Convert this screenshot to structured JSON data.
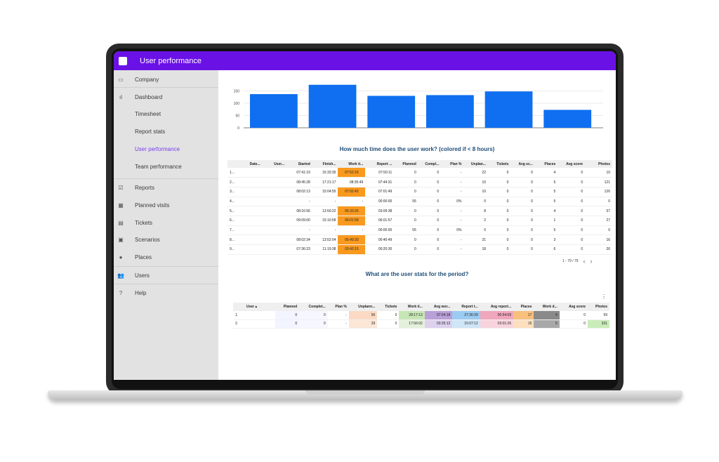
{
  "app": {
    "title": "User performance"
  },
  "sidebar": {
    "items": [
      {
        "label": "Company",
        "icon": "card-icon"
      },
      {
        "label": "Dashboard",
        "icon": "bar-chart-icon"
      },
      {
        "label": "Timesheet",
        "icon": ""
      },
      {
        "label": "Report stats",
        "icon": ""
      },
      {
        "label": "User performance",
        "icon": "",
        "active": true
      },
      {
        "label": "Team performance",
        "icon": ""
      },
      {
        "label": "Reports",
        "icon": "check-box-icon"
      },
      {
        "label": "Planned visits",
        "icon": "grid-icon"
      },
      {
        "label": "Tickets",
        "icon": "ticket-icon"
      },
      {
        "label": "Scenarios",
        "icon": "doc-icon"
      },
      {
        "label": "Places",
        "icon": "pin-icon"
      },
      {
        "label": "Users",
        "icon": "users-icon"
      },
      {
        "label": "Help",
        "icon": "help-icon"
      }
    ]
  },
  "chart_data": {
    "type": "bar",
    "categories": [
      "",
      "",
      "",
      "",
      "",
      ""
    ],
    "values": [
      137,
      175,
      130,
      133,
      148,
      73
    ],
    "yticks": [
      "0",
      "50",
      "100",
      "150"
    ],
    "ylim": [
      0,
      200
    ],
    "grid": true,
    "color": "#0f6ff0"
  },
  "work_section": {
    "title": "How much time does the user work?  (colored if < 8 hours)",
    "headers": [
      "",
      "Date...",
      "User...",
      "Started",
      "Finish...",
      "Work ti...",
      "Report ...",
      "Planned",
      "Compl...",
      "Plan %",
      "Unplan...",
      "Tickets",
      "Avg sc...",
      "Places",
      "Avg score",
      "Photos"
    ],
    "rows": [
      [
        "1...",
        "",
        "",
        "07:41:19",
        "15:33:35",
        "07:52:16",
        "07:50:11",
        "0",
        "0",
        "-",
        "22",
        "0",
        "0",
        "4",
        "0",
        "10"
      ],
      [
        "2...",
        "",
        "",
        "08:45:28",
        "17:21:17",
        "08:35:49",
        "07:44:31",
        "0",
        "0",
        "-",
        "10",
        "0",
        "0",
        "5",
        "0",
        "121"
      ],
      [
        "3...",
        "",
        "",
        "08:02:13",
        "15:04:55",
        "07:02:42",
        "07:01:49",
        "0",
        "0",
        "-",
        "10",
        "0",
        "0",
        "5",
        "0",
        "126"
      ],
      [
        "4...",
        "",
        "",
        "-",
        "-",
        "-",
        "00:00:00",
        "55",
        "0",
        "0%",
        "0",
        "0",
        "0",
        "5",
        "0",
        "0"
      ],
      [
        "5...",
        "",
        "",
        "08:16:56",
        "13:50:22",
        "05:33:26",
        "03:09:38",
        "0",
        "0",
        "-",
        "8",
        "0",
        "0",
        "4",
        "0",
        "57"
      ],
      [
        "6...",
        "",
        "",
        "09:09:00",
        "15:10:58",
        "06:01:58",
        "06:01:57",
        "0",
        "0",
        "-",
        "2",
        "0",
        "0",
        "1",
        "0",
        "27"
      ],
      [
        "7...",
        "",
        "",
        "-",
        "-",
        "-",
        "00:00:00",
        "55",
        "0",
        "0%",
        "0",
        "0",
        "0",
        "5",
        "0",
        "0"
      ],
      [
        "8...",
        "",
        "",
        "08:02:34",
        "13:52:04",
        "05:49:30",
        "00:40:49",
        "0",
        "0",
        "-",
        "21",
        "0",
        "0",
        "3",
        "0",
        "16"
      ],
      [
        "9...",
        "",
        "",
        "07:36:23",
        "11:19:38",
        "03:43:15",
        "00:20:30",
        "0",
        "0",
        "-",
        "18",
        "0",
        "0",
        "6",
        "0",
        "26"
      ]
    ],
    "highlight_rows": [
      0,
      2,
      4,
      5,
      7,
      8
    ],
    "highlight_color": "#f99a1f",
    "pager": {
      "range": "1 - 79 / 79"
    }
  },
  "stats_section": {
    "title": "What are the user stats for the period?",
    "headers": [
      "User",
      "Planned",
      "Complet...",
      "Plan %",
      "Unplann...",
      "Tickets",
      "Work ti...",
      "Avg wor...",
      "Report t...",
      "Avg report...",
      "Places",
      "Work d...",
      "Avg score",
      "Photos"
    ],
    "sort_indicator": "▴",
    "rows": [
      [
        "1.",
        "",
        "0",
        "0",
        "-",
        "56",
        "0",
        "28:17:13",
        "07:04:18",
        "27:36:39",
        "06:54:09",
        "17",
        "4",
        "0",
        "59"
      ],
      [
        "2.",
        "",
        "0",
        "0",
        "-",
        "29",
        "0",
        "17:56:02",
        "03:35:12",
        "15:07:12",
        "03:01:26",
        "15",
        "5",
        "0",
        "331"
      ]
    ],
    "cell_colors": [
      [
        "",
        "",
        "#f2f5ff",
        "#f7f7ff",
        "",
        "#fbd9c2",
        "",
        "#c7e6b5",
        "#b9a0d8",
        "#9ccbf2",
        "#f0a6bc",
        "#f7c07d",
        "#8a8a8a",
        "#ffffff",
        "#ffffff"
      ],
      [
        "",
        "",
        "#f2f5ff",
        "#f7f7ff",
        "",
        "#fce6d6",
        "",
        "#e3f1da",
        "#ddd1ee",
        "#cfe5f8",
        "#f8d3de",
        "#fbdfbe",
        "#a8a8a8",
        "#ffffff",
        "#c9ecb9"
      ]
    ]
  }
}
